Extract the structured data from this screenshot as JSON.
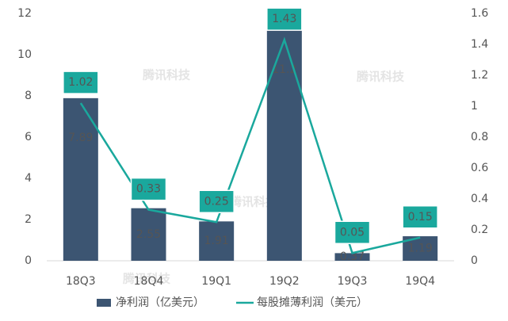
{
  "chart_data": {
    "type": "bar",
    "categories": [
      "18Q3",
      "18Q4",
      "19Q1",
      "19Q2",
      "19Q3",
      "19Q4"
    ],
    "series": [
      {
        "name": "净利润（亿美元）",
        "type": "bar",
        "color": "#3c5572",
        "values": [
          7.89,
          2.55,
          1.91,
          11.2,
          0.37,
          1.19
        ]
      },
      {
        "name": "每股摊薄利润（美元）",
        "type": "line",
        "axis": "y2",
        "color": "#1aa89d",
        "values": [
          1.02,
          0.33,
          0.25,
          1.43,
          0.05,
          0.15
        ]
      }
    ],
    "ylim": [
      0,
      12
    ],
    "yticks": [
      0,
      2,
      4,
      6,
      8,
      10,
      12
    ],
    "y2lim": [
      0,
      1.6
    ],
    "y2ticks": [
      0,
      0.2,
      0.4,
      0.6,
      0.8,
      1,
      1.2,
      1.4,
      1.6
    ],
    "watermark": "腾讯科技",
    "legend": "bottom"
  }
}
